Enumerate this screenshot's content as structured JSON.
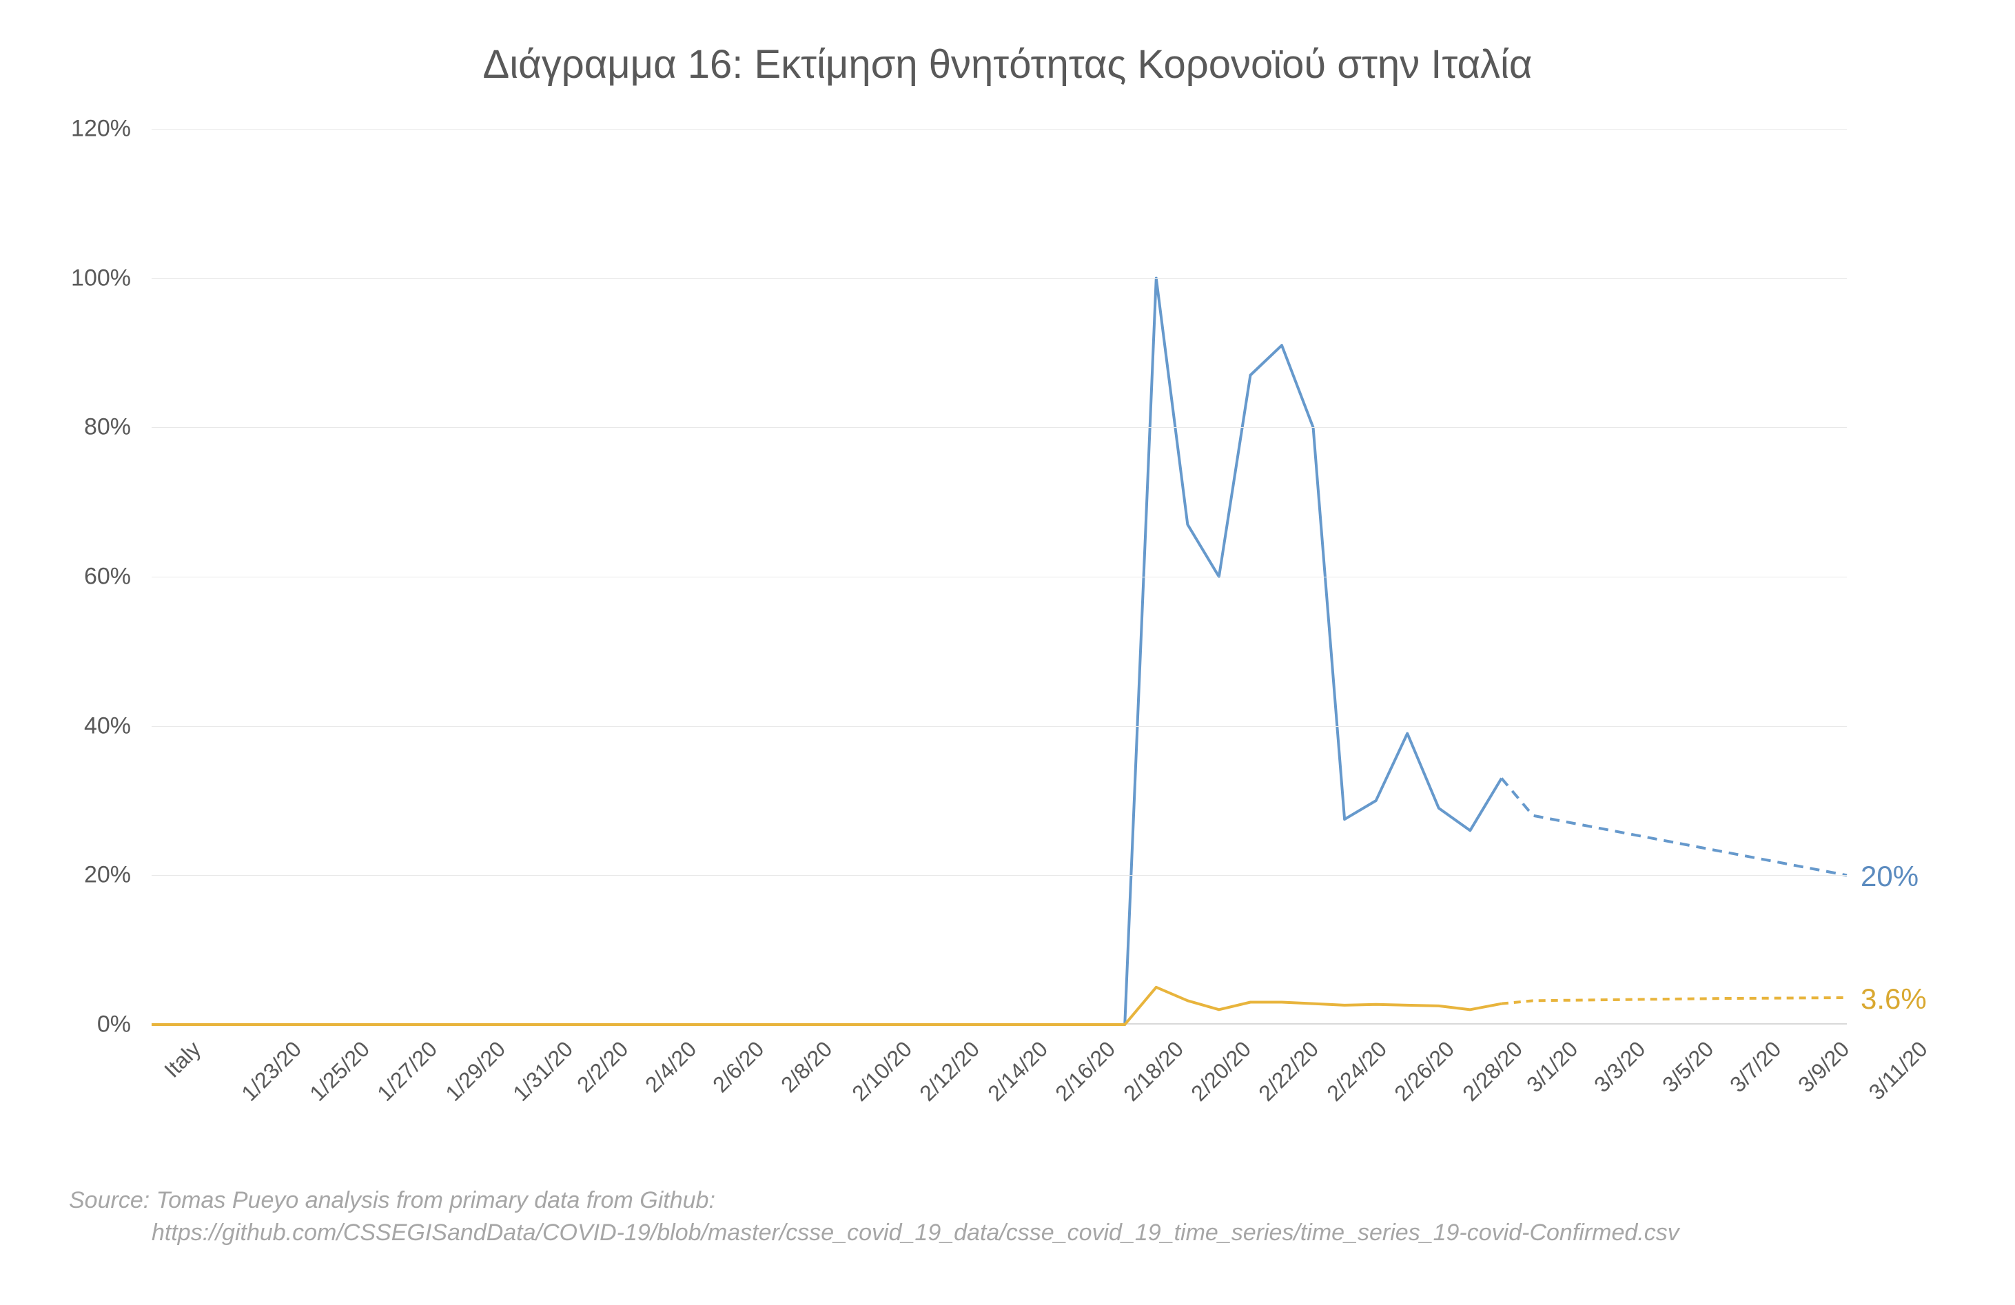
{
  "title": "Διάγραμμα 16: Εκτίμηση θνητότητας Κορονοϊού στην Ιταλία",
  "chart": {
    "type": "line",
    "background_color": "#ffffff",
    "grid_color": "#e8e8e8",
    "axis_line_color": "#d9d9d9",
    "axis_label_color": "#595959",
    "axis_label_fontsize": 34,
    "title_fontsize": 58,
    "title_color": "#595959",
    "ylim": [
      0,
      120
    ],
    "ytick_step": 20,
    "y_ticks": [
      "0%",
      "20%",
      "40%",
      "60%",
      "80%",
      "100%",
      "120%"
    ],
    "x_categories": [
      "Italy",
      "1/23/20",
      "1/25/20",
      "1/27/20",
      "1/29/20",
      "1/31/20",
      "2/2/20",
      "2/4/20",
      "2/6/20",
      "2/8/20",
      "2/10/20",
      "2/12/20",
      "2/14/20",
      "2/16/20",
      "2/18/20",
      "2/20/20",
      "2/22/20",
      "2/24/20",
      "2/26/20",
      "2/28/20",
      "3/1/20",
      "3/3/20",
      "3/5/20",
      "3/7/20",
      "3/9/20",
      "3/11/20"
    ],
    "x_label_rotation": -45,
    "series": [
      {
        "name": "blue",
        "color": "#6699cc",
        "line_width": 4,
        "dash_from_index": 43,
        "dash_pattern": "14 10",
        "end_label": "20%",
        "end_label_color": "#5b8bbf",
        "end_label_fontsize": 42,
        "values": [
          0,
          0,
          0,
          0,
          0,
          0,
          0,
          0,
          0,
          0,
          0,
          0,
          0,
          0,
          0,
          0,
          0,
          0,
          0,
          0,
          0,
          0,
          0,
          0,
          0,
          0,
          0,
          0,
          0,
          0,
          0,
          0,
          100,
          67,
          60,
          87,
          91,
          80,
          27.5,
          30,
          39,
          29,
          26,
          33,
          28,
          27.2,
          26.4,
          25.6,
          24.8,
          24,
          23.2,
          22.4,
          21.6,
          20.8,
          20
        ]
      },
      {
        "name": "yellow",
        "color": "#e8b43c",
        "line_width": 4,
        "dash_from_index": 43,
        "dash_pattern": "10 8",
        "end_label": "3.6%",
        "end_label_color": "#d9a830",
        "end_label_fontsize": 42,
        "values": [
          0,
          0,
          0,
          0,
          0,
          0,
          0,
          0,
          0,
          0,
          0,
          0,
          0,
          0,
          0,
          0,
          0,
          0,
          0,
          0,
          0,
          0,
          0,
          0,
          0,
          0,
          0,
          0,
          0,
          0,
          0,
          0,
          5,
          3.2,
          2,
          3,
          3,
          2.8,
          2.6,
          2.7,
          2.6,
          2.5,
          2,
          2.8,
          3.2,
          3.25,
          3.3,
          3.35,
          3.4,
          3.45,
          3.5,
          3.52,
          3.55,
          3.58,
          3.6
        ]
      }
    ]
  },
  "source": {
    "line1": "Source: Tomas Pueyo analysis from primary data from Github:",
    "line2": "https://github.com/CSSEGISandData/COVID-19/blob/master/csse_covid_19_data/csse_covid_19_time_series/time_series_19-covid-Confirmed.csv"
  }
}
